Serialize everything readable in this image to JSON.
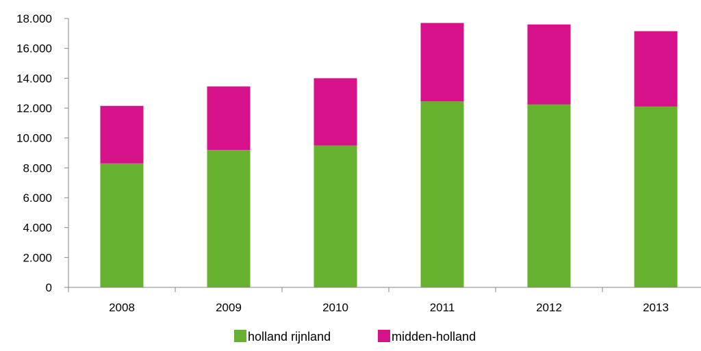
{
  "chart_data": {
    "type": "bar",
    "stacked": true,
    "categories": [
      "2008",
      "2009",
      "2010",
      "2011",
      "2012",
      "2013"
    ],
    "series": [
      {
        "name": "holland rijnland",
        "color": "#66B12E",
        "values": [
          8300,
          9200,
          9500,
          12450,
          12250,
          12100
        ]
      },
      {
        "name": "midden-holland",
        "color": "#D6118A",
        "values": [
          3850,
          4250,
          4500,
          5250,
          5350,
          5050
        ]
      }
    ],
    "ylim": [
      0,
      18000
    ],
    "yticks": [
      0,
      2000,
      4000,
      6000,
      8000,
      10000,
      12000,
      14000,
      16000,
      18000
    ],
    "ytick_labels": [
      "0",
      "2.000",
      "4.000",
      "6.000",
      "8.000",
      "10.000",
      "12.000",
      "14.000",
      "16.000",
      "18.000"
    ],
    "grid": false,
    "legend_position": "bottom",
    "title": "",
    "xlabel": "",
    "ylabel": ""
  }
}
